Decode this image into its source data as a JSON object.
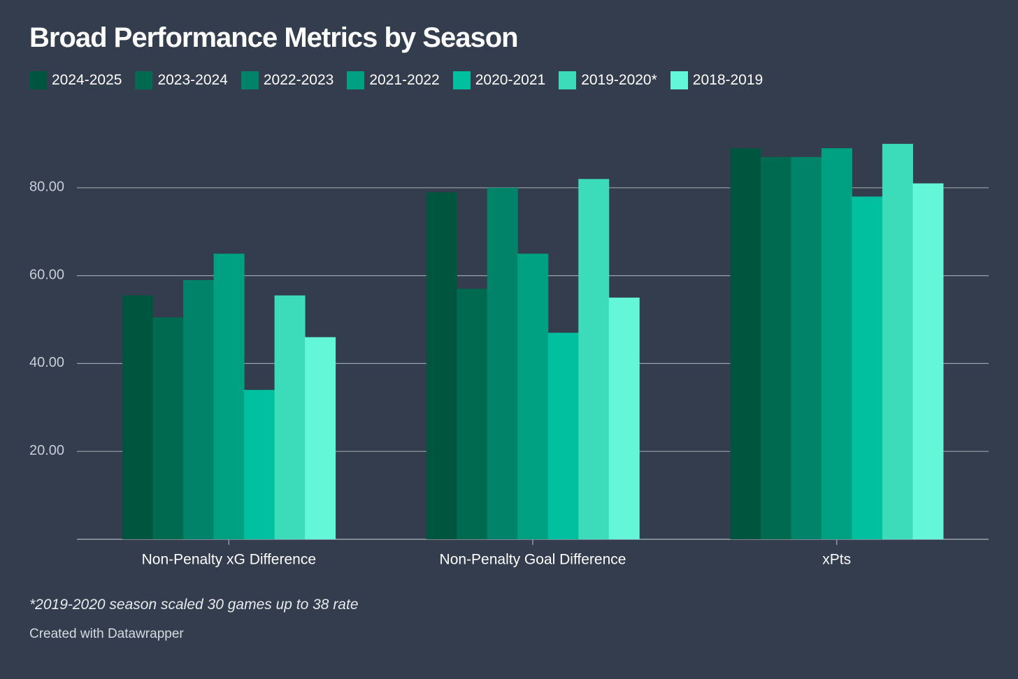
{
  "chart_data": {
    "type": "bar",
    "title": "Broad Performance Metrics by Season",
    "categories": [
      "Non-Penalty xG Difference",
      "Non-Penalty Goal Difference",
      "xPts"
    ],
    "series": [
      {
        "name": "2024-2025",
        "color": "#00553e",
        "values": [
          55.5,
          79,
          89
        ]
      },
      {
        "name": "2023-2024",
        "color": "#006a51",
        "values": [
          50.5,
          57,
          87
        ]
      },
      {
        "name": "2022-2023",
        "color": "#008368",
        "values": [
          59,
          80,
          87
        ]
      },
      {
        "name": "2021-2022",
        "color": "#00a183",
        "values": [
          65,
          65,
          89
        ]
      },
      {
        "name": "2020-2021",
        "color": "#00c09f",
        "values": [
          34,
          47,
          78
        ]
      },
      {
        "name": "2019-2020*",
        "color": "#3cdbb9",
        "values": [
          55.5,
          82,
          90
        ]
      },
      {
        "name": "2018-2019",
        "color": "#64f7d7",
        "values": [
          46,
          55,
          81
        ]
      }
    ],
    "yticks": [
      "20.00",
      "40.00",
      "60.00",
      "80.00"
    ],
    "ytick_values": [
      20,
      40,
      60,
      80
    ],
    "ylim": [
      0,
      100
    ],
    "grid": true,
    "legend_position": "top-left",
    "xlabel": "",
    "ylabel": ""
  },
  "notes": {
    "footnote": "*2019-2020 season scaled 30 games up to 38 rate",
    "credit": "Created with Datawrapper"
  },
  "colors": {
    "background": "#333d4d",
    "gridline": "#9aa1aa",
    "axis_text": "#c9ced6",
    "category_text": "#ffffff"
  }
}
